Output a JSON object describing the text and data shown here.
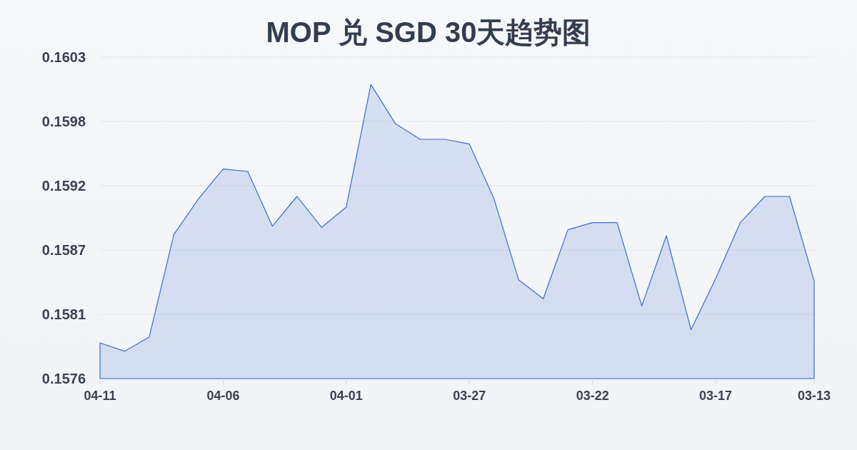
{
  "chart_data": {
    "type": "area",
    "title": "MOP 兑 SGD 30天趋势图",
    "categories": [
      "04-11",
      null,
      null,
      null,
      null,
      "04-06",
      null,
      null,
      null,
      null,
      "04-01",
      null,
      null,
      null,
      null,
      "03-27",
      null,
      null,
      null,
      null,
      "03-22",
      null,
      null,
      null,
      null,
      "03-17",
      null,
      null,
      null,
      "03-13"
    ],
    "series": [
      {
        "color": "#3a6bd1",
        "values": [
          0.1579,
          0.15783,
          0.15795,
          0.15881,
          0.15911,
          0.15936,
          0.15934,
          0.15888,
          0.15913,
          0.15887,
          0.15904,
          0.16007,
          0.15974,
          0.15961,
          0.15961,
          0.15957,
          0.15911,
          0.15843,
          0.15827,
          0.15885,
          0.15891,
          0.15891,
          0.15821,
          0.1588,
          0.15801,
          0.15844,
          0.15891,
          0.15913,
          0.15913,
          0.15842
        ]
      }
    ],
    "ylim": [
      0.1576,
      0.1603
    ],
    "yticks": [
      0.1576,
      {
        "value": 0.15814,
        "label": "0.1581"
      },
      {
        "value": 0.15868,
        "label": "0.1587"
      },
      {
        "value": 0.15922,
        "label": "0.1592"
      },
      {
        "value": 0.15976,
        "label": "0.1598"
      },
      0.1603
    ],
    "grid": "y"
  }
}
